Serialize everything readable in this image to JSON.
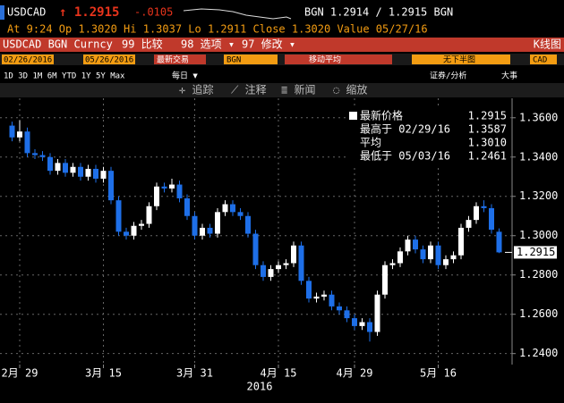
{
  "screen": {
    "ticker": "USDCAD",
    "last": "↑ 1.2915",
    "change": "-.0105",
    "bid_ask": "BGN  1.2914 / 1.2915  BGN",
    "quote_line": "At 9:24   Op 1.3020   Hi 1.3037   Lo 1.2911   Close 1.3020   Value 05/27/16",
    "security": "USDCAD BGN Curncy",
    "compare": "99 比较",
    "options": "98 选项 ▾",
    "modify": "97 修改 ▾",
    "chart_kind": "K线图",
    "start_date": "02/26/2016",
    "end_date": "05/26/2016",
    "last_trade": "最新交易",
    "source": "BGN",
    "moving_avg": "移动平均",
    "lower_panel": "无下半图",
    "currency": "CAD",
    "periods": "1D  3D  1M  6M  YTD  1Y  5Y  Max",
    "frequency": "每日 ▼",
    "analysis": "证券/分析",
    "events": "大事",
    "tools": [
      "✛ 追踪",
      "⟋ 注释",
      "≣ 新闻",
      "◌ 缩放"
    ]
  },
  "chart_data": {
    "type": "candlestick",
    "xlabel": "2016",
    "categories": [
      null,
      "2月 29",
      null,
      null,
      null,
      null,
      null,
      null,
      null,
      null,
      null,
      null,
      "3月 15",
      null,
      null,
      null,
      null,
      null,
      null,
      null,
      null,
      null,
      null,
      null,
      "3月 31",
      null,
      null,
      null,
      null,
      null,
      null,
      null,
      null,
      null,
      null,
      "4月 15",
      null,
      null,
      null,
      null,
      null,
      null,
      null,
      null,
      null,
      "4月 29",
      null,
      null,
      null,
      null,
      null,
      null,
      null,
      null,
      null,
      null,
      "5月 16",
      null,
      null,
      null,
      null,
      null,
      null,
      null,
      null
    ],
    "open": [
      1.356,
      1.35,
      1.353,
      1.342,
      1.341,
      1.34,
      1.333,
      1.337,
      1.332,
      1.335,
      1.33,
      1.334,
      1.329,
      1.333,
      1.318,
      1.302,
      1.3,
      1.305,
      1.306,
      1.315,
      1.325,
      1.324,
      1.326,
      1.319,
      1.31,
      1.3,
      1.304,
      1.301,
      1.312,
      1.316,
      1.312,
      1.31,
      1.301,
      1.285,
      1.279,
      1.283,
      1.285,
      1.286,
      1.295,
      1.277,
      1.268,
      1.269,
      1.27,
      1.264,
      1.262,
      1.258,
      1.254,
      1.256,
      1.251,
      1.27,
      1.285,
      1.286,
      1.292,
      1.298,
      1.293,
      1.288,
      1.295,
      1.285,
      1.288,
      1.29,
      1.304,
      1.308,
      1.315,
      1.314,
      1.302
    ],
    "high": [
      1.358,
      1.3587,
      1.355,
      1.344,
      1.343,
      1.342,
      1.339,
      1.339,
      1.337,
      1.337,
      1.336,
      1.336,
      1.335,
      1.335,
      1.32,
      1.304,
      1.307,
      1.308,
      1.317,
      1.327,
      1.327,
      1.329,
      1.328,
      1.321,
      1.312,
      1.306,
      1.306,
      1.314,
      1.318,
      1.318,
      1.314,
      1.312,
      1.303,
      1.287,
      1.285,
      1.287,
      1.288,
      1.297,
      1.297,
      1.279,
      1.271,
      1.272,
      1.272,
      1.266,
      1.264,
      1.26,
      1.258,
      1.258,
      1.272,
      1.287,
      1.288,
      1.294,
      1.3,
      1.3,
      1.295,
      1.297,
      1.297,
      1.29,
      1.292,
      1.306,
      1.31,
      1.317,
      1.318,
      1.316,
      1.3037
    ],
    "low": [
      1.348,
      1.348,
      1.34,
      1.339,
      1.338,
      1.331,
      1.331,
      1.33,
      1.33,
      1.328,
      1.328,
      1.327,
      1.327,
      1.316,
      1.3,
      1.298,
      1.298,
      1.303,
      1.304,
      1.313,
      1.322,
      1.322,
      1.317,
      1.308,
      1.298,
      1.298,
      1.299,
      1.299,
      1.31,
      1.31,
      1.308,
      1.299,
      1.283,
      1.277,
      1.277,
      1.281,
      1.283,
      1.284,
      1.275,
      1.266,
      1.266,
      1.267,
      1.262,
      1.26,
      1.256,
      1.252,
      1.252,
      1.2461,
      1.249,
      1.268,
      1.283,
      1.284,
      1.29,
      1.291,
      1.286,
      1.286,
      1.283,
      1.283,
      1.286,
      1.288,
      1.302,
      1.306,
      1.312,
      1.301,
      1.2911
    ],
    "close": [
      1.35,
      1.353,
      1.342,
      1.341,
      1.34,
      1.333,
      1.337,
      1.332,
      1.335,
      1.33,
      1.334,
      1.329,
      1.333,
      1.318,
      1.302,
      1.3,
      1.305,
      1.306,
      1.315,
      1.325,
      1.324,
      1.326,
      1.319,
      1.31,
      1.3,
      1.304,
      1.301,
      1.312,
      1.316,
      1.312,
      1.31,
      1.301,
      1.285,
      1.279,
      1.283,
      1.285,
      1.286,
      1.295,
      1.277,
      1.268,
      1.269,
      1.27,
      1.264,
      1.262,
      1.258,
      1.254,
      1.256,
      1.251,
      1.27,
      1.285,
      1.286,
      1.292,
      1.298,
      1.293,
      1.288,
      1.295,
      1.285,
      1.288,
      1.29,
      1.304,
      1.308,
      1.315,
      1.314,
      1.303,
      1.2915
    ],
    "up_color": "#ffffff",
    "down_color": "#1e6fe8",
    "ylim": [
      1.2344,
      1.3699
    ],
    "yticks": [
      {
        "value": 1.24,
        "label": "1.2400"
      },
      {
        "value": 1.26,
        "label": "1.2600"
      },
      {
        "value": 1.28,
        "label": "1.2800"
      },
      {
        "value": 1.3,
        "label": "1.3000"
      },
      {
        "value": 1.32,
        "label": "1.3200"
      },
      {
        "value": 1.34,
        "label": "1.3400"
      },
      {
        "value": 1.36,
        "label": "1.3600"
      }
    ],
    "last_price": {
      "value": 1.2915,
      "label": "1.2915"
    },
    "grid": true,
    "legend": [
      {
        "name": "最新价格",
        "value": {
          "value": 1.2915,
          "label": "1.2915"
        }
      },
      {
        "name": "最高于 02/29/16",
        "value": {
          "value": 1.3587,
          "label": "1.3587"
        }
      },
      {
        "name": "平均",
        "value": {
          "value": 1.301,
          "label": "1.3010"
        }
      },
      {
        "name": "最低于 05/03/16",
        "value": {
          "value": 1.2461,
          "label": "1.2461"
        }
      }
    ]
  }
}
